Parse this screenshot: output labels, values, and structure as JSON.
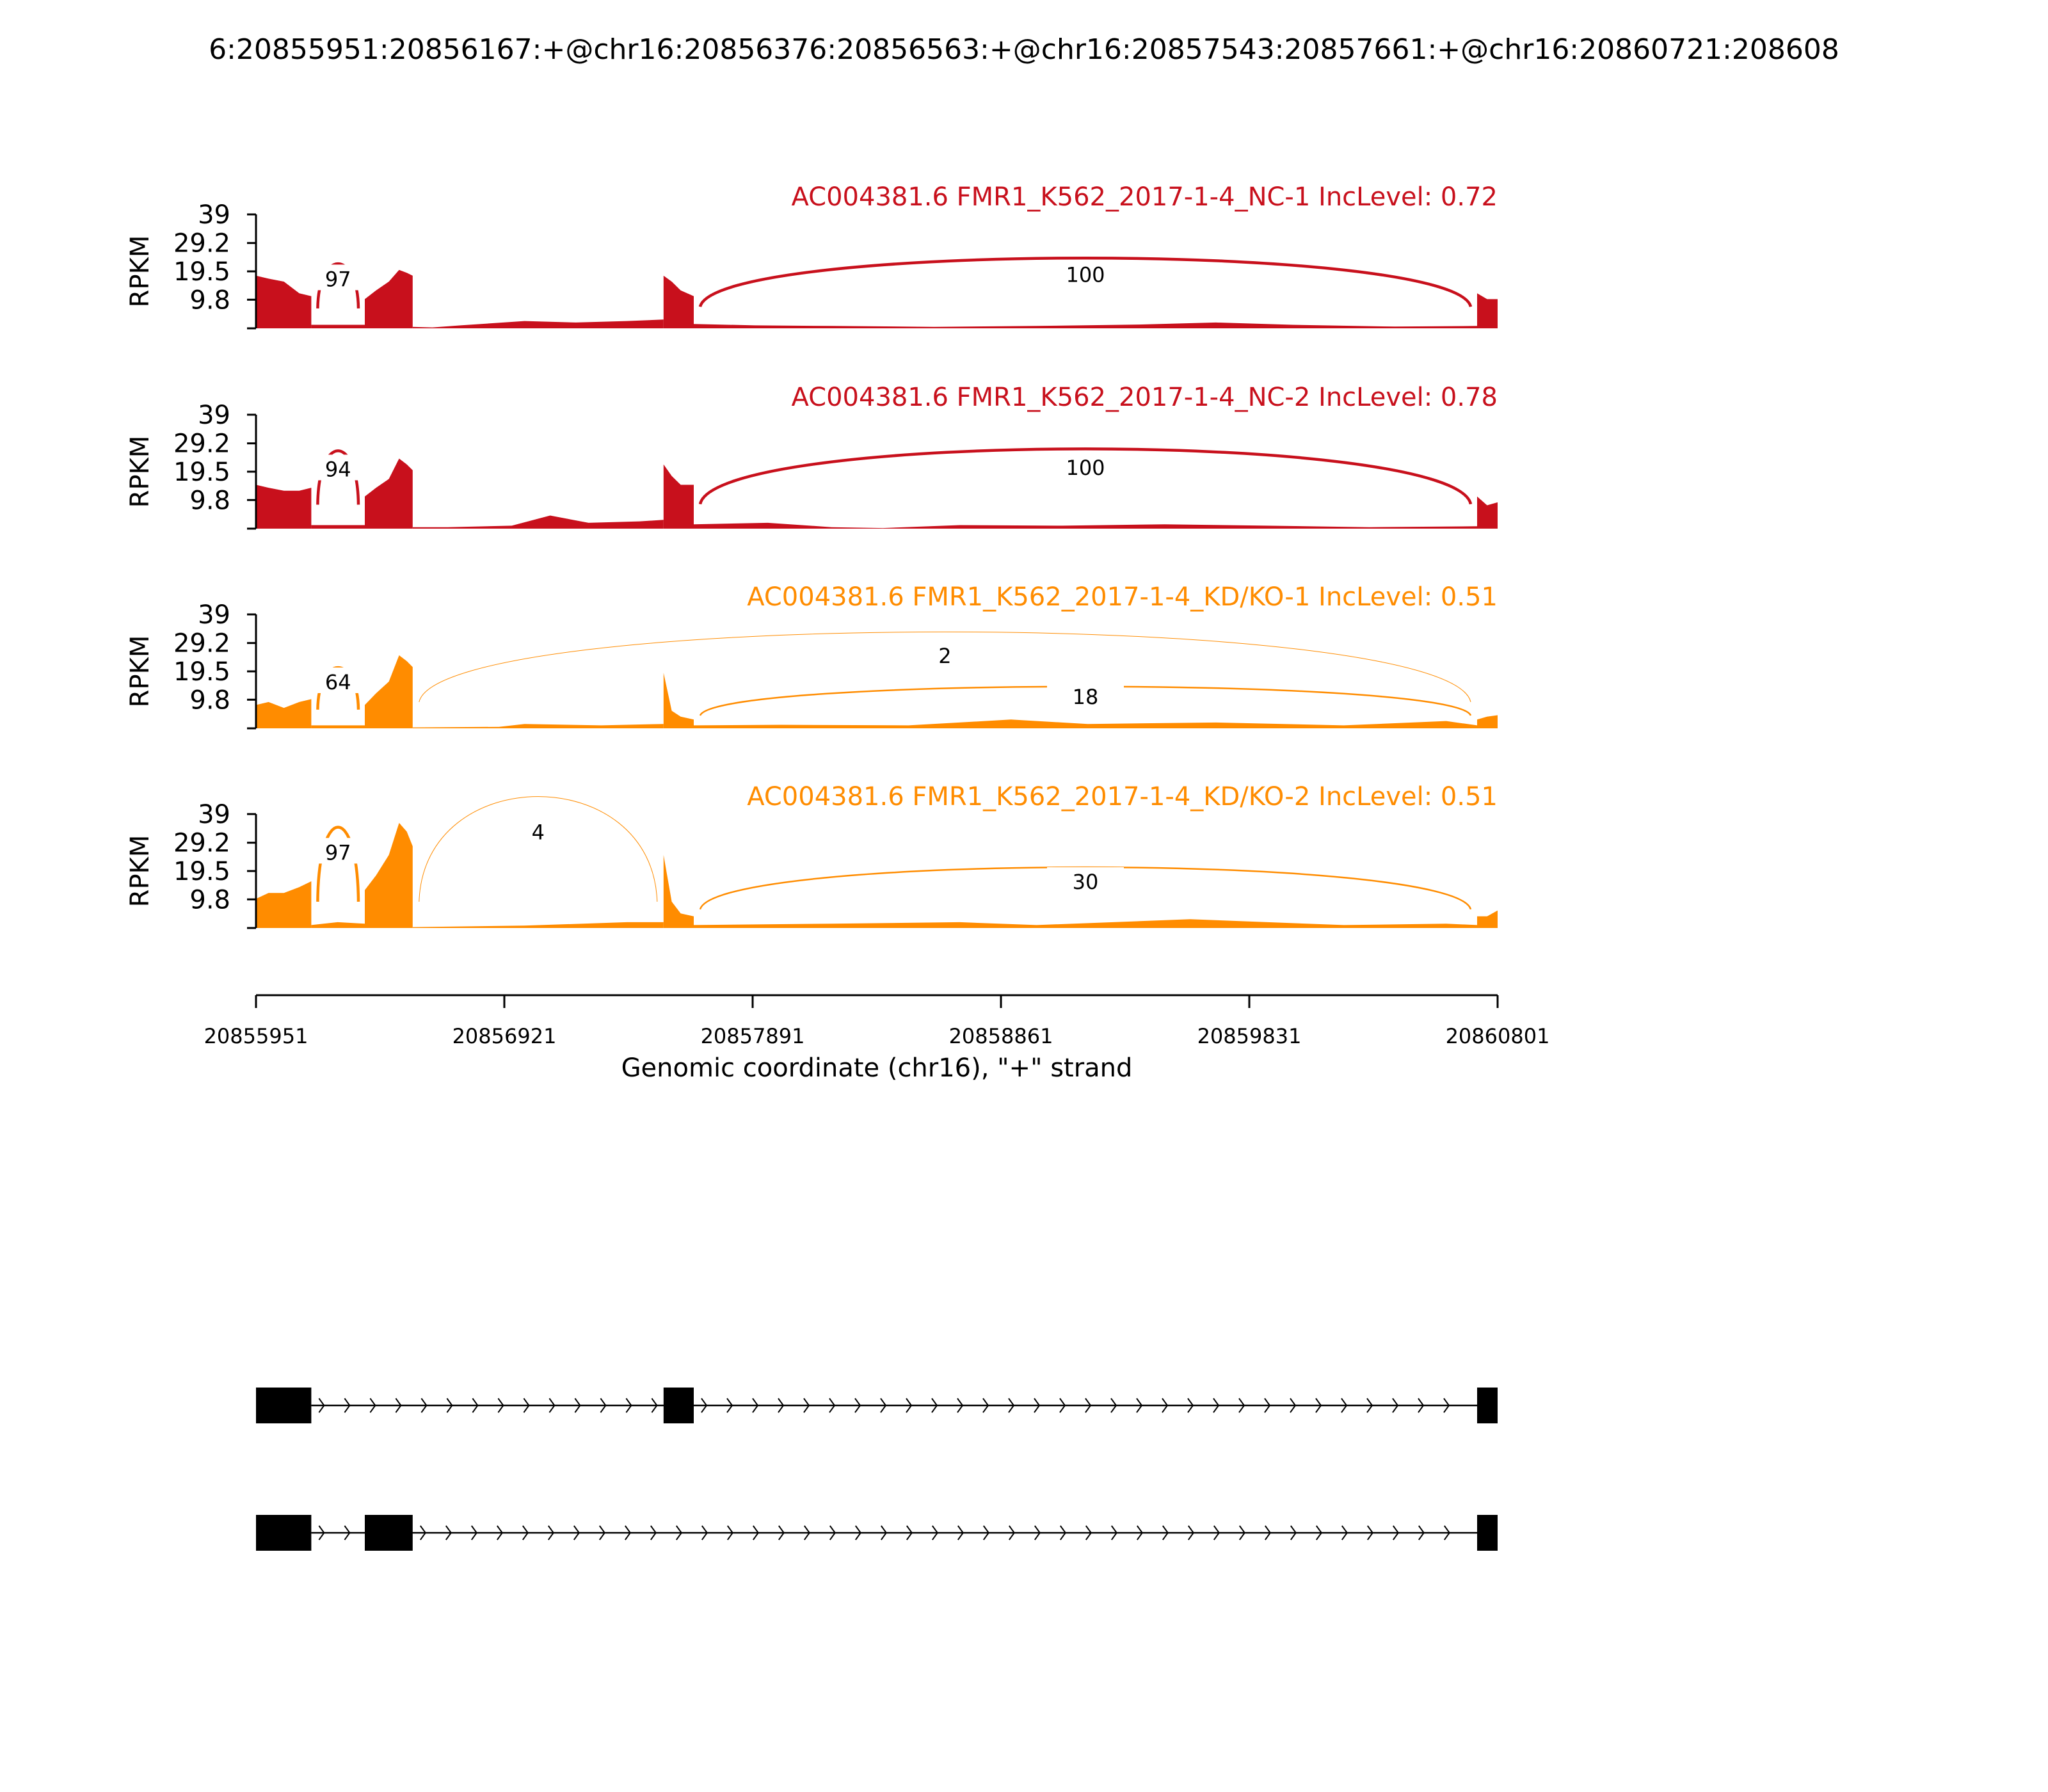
{
  "title": "6:20855951:20856167:+@chr16:20856376:20856563:+@chr16:20857543:20857661:+@chr16:20860721:208608",
  "chart_data": {
    "type": "area",
    "plot": "sashimi",
    "x_range": [
      20855951,
      20860801
    ],
    "xticks": [
      20855951,
      20856921,
      20857891,
      20858861,
      20859831,
      20860801
    ],
    "xlabel": "Genomic coordinate (chr16), \"+\" strand",
    "ylabel": "RPKM",
    "y_range": [
      0,
      39
    ],
    "yticks": [
      9.8,
      19.5,
      29.2,
      39
    ],
    "ytick_labels": [
      "9.8",
      "19.5",
      "29.2",
      "39"
    ],
    "exons": [
      [
        20855951,
        20856167
      ],
      [
        20856376,
        20856563
      ],
      [
        20857543,
        20857661
      ],
      [
        20860721,
        20860801
      ]
    ],
    "colors": {
      "NC": "#c8101c",
      "KD": "#ff8c00"
    },
    "samples": [
      {
        "label": "AC004381.6 FMR1_K562_2017-1-4_NC-1 IncLevel: 0.72",
        "color": "#c8101c",
        "exon_coverage": [
          [
            [
              20855951,
              18
            ],
            [
              20856000,
              17
            ],
            [
              20856060,
              16
            ],
            [
              20856120,
              12
            ],
            [
              20856167,
              11
            ]
          ],
          [
            [
              20856376,
              10
            ],
            [
              20856420,
              13
            ],
            [
              20856470,
              16
            ],
            [
              20856510,
              20
            ],
            [
              20856540,
              19
            ],
            [
              20856563,
              18
            ]
          ],
          [
            [
              20857543,
              18
            ],
            [
              20857575,
              16
            ],
            [
              20857610,
              13
            ],
            [
              20857661,
              11
            ]
          ],
          [
            [
              20860721,
              12
            ],
            [
              20860760,
              10
            ],
            [
              20860801,
              10
            ]
          ]
        ],
        "intron_coverage": [
          [
            [
              20856167,
              1.2
            ],
            [
              20856376,
              1.2
            ]
          ],
          [
            [
              20856563,
              0.5
            ],
            [
              20856640,
              0.3
            ],
            [
              20856750,
              1
            ],
            [
              20857000,
              2.5
            ],
            [
              20857200,
              2
            ],
            [
              20857400,
              2.5
            ],
            [
              20857543,
              3
            ]
          ],
          [
            [
              20857661,
              1.5
            ],
            [
              20857900,
              1
            ],
            [
              20858200,
              0.8
            ],
            [
              20858600,
              0.5
            ],
            [
              20859000,
              0.8
            ],
            [
              20859400,
              1.3
            ],
            [
              20859700,
              2
            ],
            [
              20860000,
              1.2
            ],
            [
              20860400,
              0.6
            ],
            [
              20860721,
              0.8
            ]
          ]
        ],
        "junctions": [
          {
            "from": 20856167,
            "to": 20856376,
            "count": 97,
            "peak": 17
          },
          {
            "from": 20857661,
            "to": 20860721,
            "count": 100,
            "peak": 18.5
          }
        ]
      },
      {
        "label": "AC004381.6 FMR1_K562_2017-1-4_NC-2 IncLevel: 0.78",
        "color": "#c8101c",
        "exon_coverage": [
          [
            [
              20855951,
              15
            ],
            [
              20856000,
              14
            ],
            [
              20856060,
              13
            ],
            [
              20856120,
              13
            ],
            [
              20856167,
              14
            ]
          ],
          [
            [
              20856376,
              11
            ],
            [
              20856420,
              14
            ],
            [
              20856470,
              17
            ],
            [
              20856510,
              24
            ],
            [
              20856540,
              22
            ],
            [
              20856563,
              20
            ]
          ],
          [
            [
              20857543,
              22
            ],
            [
              20857575,
              18
            ],
            [
              20857610,
              15
            ],
            [
              20857661,
              15
            ]
          ],
          [
            [
              20860721,
              11
            ],
            [
              20860760,
              8
            ],
            [
              20860801,
              9
            ]
          ]
        ],
        "intron_coverage": [
          [
            [
              20856167,
              1.2
            ],
            [
              20856376,
              1.2
            ]
          ],
          [
            [
              20856563,
              0.5
            ],
            [
              20856700,
              0.5
            ],
            [
              20856950,
              1
            ],
            [
              20857100,
              4.5
            ],
            [
              20857250,
              2
            ],
            [
              20857450,
              2.5
            ],
            [
              20857543,
              3
            ]
          ],
          [
            [
              20857661,
              1.5
            ],
            [
              20857950,
              2
            ],
            [
              20858200,
              0.5
            ],
            [
              20858400,
              0.2
            ],
            [
              20858700,
              1.2
            ],
            [
              20859100,
              1
            ],
            [
              20859500,
              1.5
            ],
            [
              20859900,
              1
            ],
            [
              20860300,
              0.5
            ],
            [
              20860721,
              0.8
            ]
          ]
        ],
        "junctions": [
          {
            "from": 20856167,
            "to": 20856376,
            "count": 94,
            "peak": 20.5
          },
          {
            "from": 20857661,
            "to": 20860721,
            "count": 100,
            "peak": 21
          }
        ]
      },
      {
        "label": "AC004381.6 FMR1_K562_2017-1-4_KD/KO-1 IncLevel: 0.51",
        "color": "#ff8c00",
        "exon_coverage": [
          [
            [
              20855951,
              8
            ],
            [
              20856000,
              9
            ],
            [
              20856060,
              7
            ],
            [
              20856120,
              9
            ],
            [
              20856167,
              10
            ]
          ],
          [
            [
              20856376,
              8
            ],
            [
              20856420,
              12
            ],
            [
              20856470,
              16
            ],
            [
              20856510,
              25
            ],
            [
              20856540,
              23
            ],
            [
              20856563,
              21
            ]
          ],
          [
            [
              20857543,
              19
            ],
            [
              20857575,
              6
            ],
            [
              20857610,
              4
            ],
            [
              20857661,
              3
            ]
          ],
          [
            [
              20860721,
              3
            ],
            [
              20860760,
              4
            ],
            [
              20860801,
              4.5
            ]
          ]
        ],
        "intron_coverage": [
          [
            [
              20856167,
              1
            ],
            [
              20856376,
              1
            ]
          ],
          [
            [
              20856563,
              0.3
            ],
            [
              20856900,
              0.5
            ],
            [
              20857000,
              1.5
            ],
            [
              20857300,
              1
            ],
            [
              20857543,
              1.5
            ]
          ],
          [
            [
              20857661,
              1
            ],
            [
              20858000,
              1.2
            ],
            [
              20858500,
              1
            ],
            [
              20858900,
              3
            ],
            [
              20859200,
              1.5
            ],
            [
              20859700,
              2
            ],
            [
              20860200,
              1
            ],
            [
              20860600,
              2.5
            ],
            [
              20860721,
              1
            ]
          ]
        ],
        "junctions": [
          {
            "from": 20856167,
            "to": 20856376,
            "count": 64,
            "peak": 16
          },
          {
            "from": 20856563,
            "to": 20860721,
            "count": 2,
            "peak": 25
          },
          {
            "from": 20857661,
            "to": 20860721,
            "count": 18,
            "peak": 11
          }
        ]
      },
      {
        "label": "AC004381.6 FMR1_K562_2017-1-4_KD/KO-2 IncLevel: 0.51",
        "color": "#ff8c00",
        "exon_coverage": [
          [
            [
              20855951,
              10
            ],
            [
              20856000,
              12
            ],
            [
              20856060,
              12
            ],
            [
              20856120,
              14
            ],
            [
              20856167,
              16
            ]
          ],
          [
            [
              20856376,
              13
            ],
            [
              20856420,
              18
            ],
            [
              20856470,
              25
            ],
            [
              20856510,
              36
            ],
            [
              20856540,
              33
            ],
            [
              20856563,
              28
            ]
          ],
          [
            [
              20857543,
              25
            ],
            [
              20857575,
              9
            ],
            [
              20857610,
              5
            ],
            [
              20857661,
              4
            ]
          ],
          [
            [
              20860721,
              4
            ],
            [
              20860760,
              4
            ],
            [
              20860801,
              6
            ]
          ]
        ],
        "intron_coverage": [
          [
            [
              20856167,
              1
            ],
            [
              20856270,
              2
            ],
            [
              20856376,
              1.5
            ]
          ],
          [
            [
              20856563,
              0.3
            ],
            [
              20857000,
              0.8
            ],
            [
              20857400,
              2
            ],
            [
              20857543,
              2
            ]
          ],
          [
            [
              20857661,
              1
            ],
            [
              20858200,
              1.5
            ],
            [
              20858700,
              2
            ],
            [
              20859000,
              1
            ],
            [
              20859600,
              3
            ],
            [
              20860200,
              1
            ],
            [
              20860600,
              1.5
            ],
            [
              20860721,
              1
            ]
          ]
        ],
        "junctions": [
          {
            "from": 20856167,
            "to": 20856376,
            "count": 97,
            "peak": 26
          },
          {
            "from": 20856563,
            "to": 20857543,
            "count": 4,
            "peak": 33
          },
          {
            "from": 20857661,
            "to": 20860721,
            "count": 30,
            "peak": 16
          }
        ]
      }
    ],
    "isoforms": [
      {
        "exons": [
          [
            20855951,
            20856167
          ],
          [
            20857543,
            20857661
          ],
          [
            20860721,
            20860801
          ]
        ]
      },
      {
        "exons": [
          [
            20855951,
            20856167
          ],
          [
            20856376,
            20856563
          ],
          [
            20860721,
            20860801
          ]
        ]
      }
    ]
  }
}
